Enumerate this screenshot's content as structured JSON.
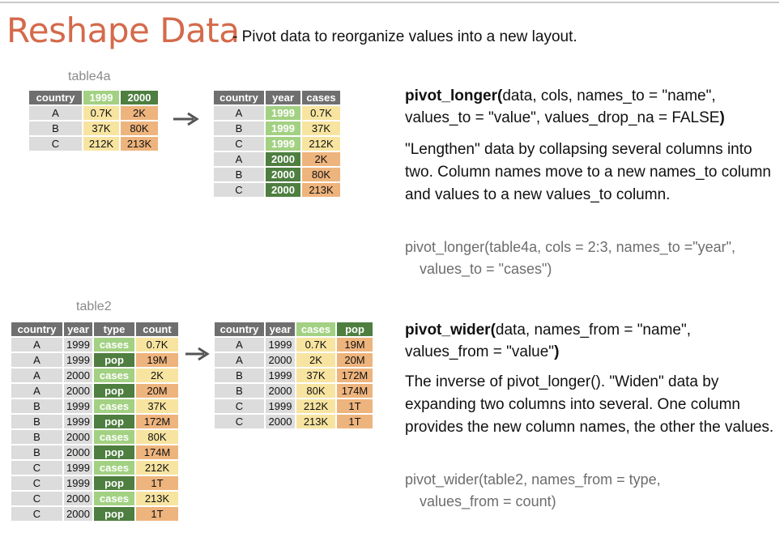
{
  "title": "Reshape Data",
  "subtitle": "- Pivot data to reorganize values into a new layout.",
  "section1": {
    "table_label": "table4a",
    "wide_table": {
      "headers": [
        "country",
        "1999",
        "2000"
      ],
      "rows": [
        [
          "A",
          "0.7K",
          "2K"
        ],
        [
          "B",
          "37K",
          "80K"
        ],
        [
          "C",
          "212K",
          "213K"
        ]
      ]
    },
    "long_table": {
      "headers": [
        "country",
        "year",
        "cases"
      ],
      "rows": [
        [
          "A",
          "1999",
          "0.7K"
        ],
        [
          "B",
          "1999",
          "37K"
        ],
        [
          "C",
          "1999",
          "212K"
        ],
        [
          "A",
          "2000",
          "2K"
        ],
        [
          "B",
          "2000",
          "80K"
        ],
        [
          "C",
          "2000",
          "213K"
        ]
      ]
    },
    "fn_name": "pivot_longer(",
    "fn_args_line1": "data, cols, names_to = \"name\",",
    "fn_args_line2": "values_to = \"value\", values_drop_na = FALSE",
    "fn_close": ")",
    "description": "\"Lengthen\" data by collapsing several columns into two. Column names move to a new names_to column and values to a new values_to column.",
    "example_line1": "pivot_longer(table4a, cols = 2:3, names_to =\"year\",",
    "example_line2": "values_to = \"cases\")"
  },
  "section2": {
    "table_label": "table2",
    "long_table": {
      "headers": [
        "country",
        "year",
        "type",
        "count"
      ],
      "rows": [
        [
          "A",
          "1999",
          "cases",
          "0.7K"
        ],
        [
          "A",
          "1999",
          "pop",
          "19M"
        ],
        [
          "A",
          "2000",
          "cases",
          "2K"
        ],
        [
          "A",
          "2000",
          "pop",
          "20M"
        ],
        [
          "B",
          "1999",
          "cases",
          "37K"
        ],
        [
          "B",
          "1999",
          "pop",
          "172M"
        ],
        [
          "B",
          "2000",
          "cases",
          "80K"
        ],
        [
          "B",
          "2000",
          "pop",
          "174M"
        ],
        [
          "C",
          "1999",
          "cases",
          "212K"
        ],
        [
          "C",
          "1999",
          "pop",
          "1T"
        ],
        [
          "C",
          "2000",
          "cases",
          "213K"
        ],
        [
          "C",
          "2000",
          "pop",
          "1T"
        ]
      ]
    },
    "wide_table": {
      "headers": [
        "country",
        "year",
        "cases",
        "pop"
      ],
      "rows": [
        [
          "A",
          "1999",
          "0.7K",
          "19M"
        ],
        [
          "A",
          "2000",
          "2K",
          "20M"
        ],
        [
          "B",
          "1999",
          "37K",
          "172M"
        ],
        [
          "B",
          "2000",
          "80K",
          "174M"
        ],
        [
          "C",
          "1999",
          "212K",
          "1T"
        ],
        [
          "C",
          "2000",
          "213K",
          "1T"
        ]
      ]
    },
    "fn_name": "pivot_wider(",
    "fn_args_line1": "data, names_from = \"name\",",
    "fn_args_line2": "values_from = \"value\"",
    "fn_close": ")",
    "description": "The inverse of pivot_longer(). \"Widen\" data by expanding two columns into several. One column provides the new column names, the other the values.",
    "example_line1": "pivot_wider(table2, names_from = type,",
    "example_line2": "values_from = count)"
  },
  "colors": {
    "title": "#d46a4b",
    "header_gray": "#6f6f6f",
    "cell_gray": "#dcdcdc",
    "cell_yellow": "#f7e4a0",
    "cell_orange": "#eeb47d",
    "light_green": "#a3d183",
    "dark_green": "#4e7e40"
  }
}
